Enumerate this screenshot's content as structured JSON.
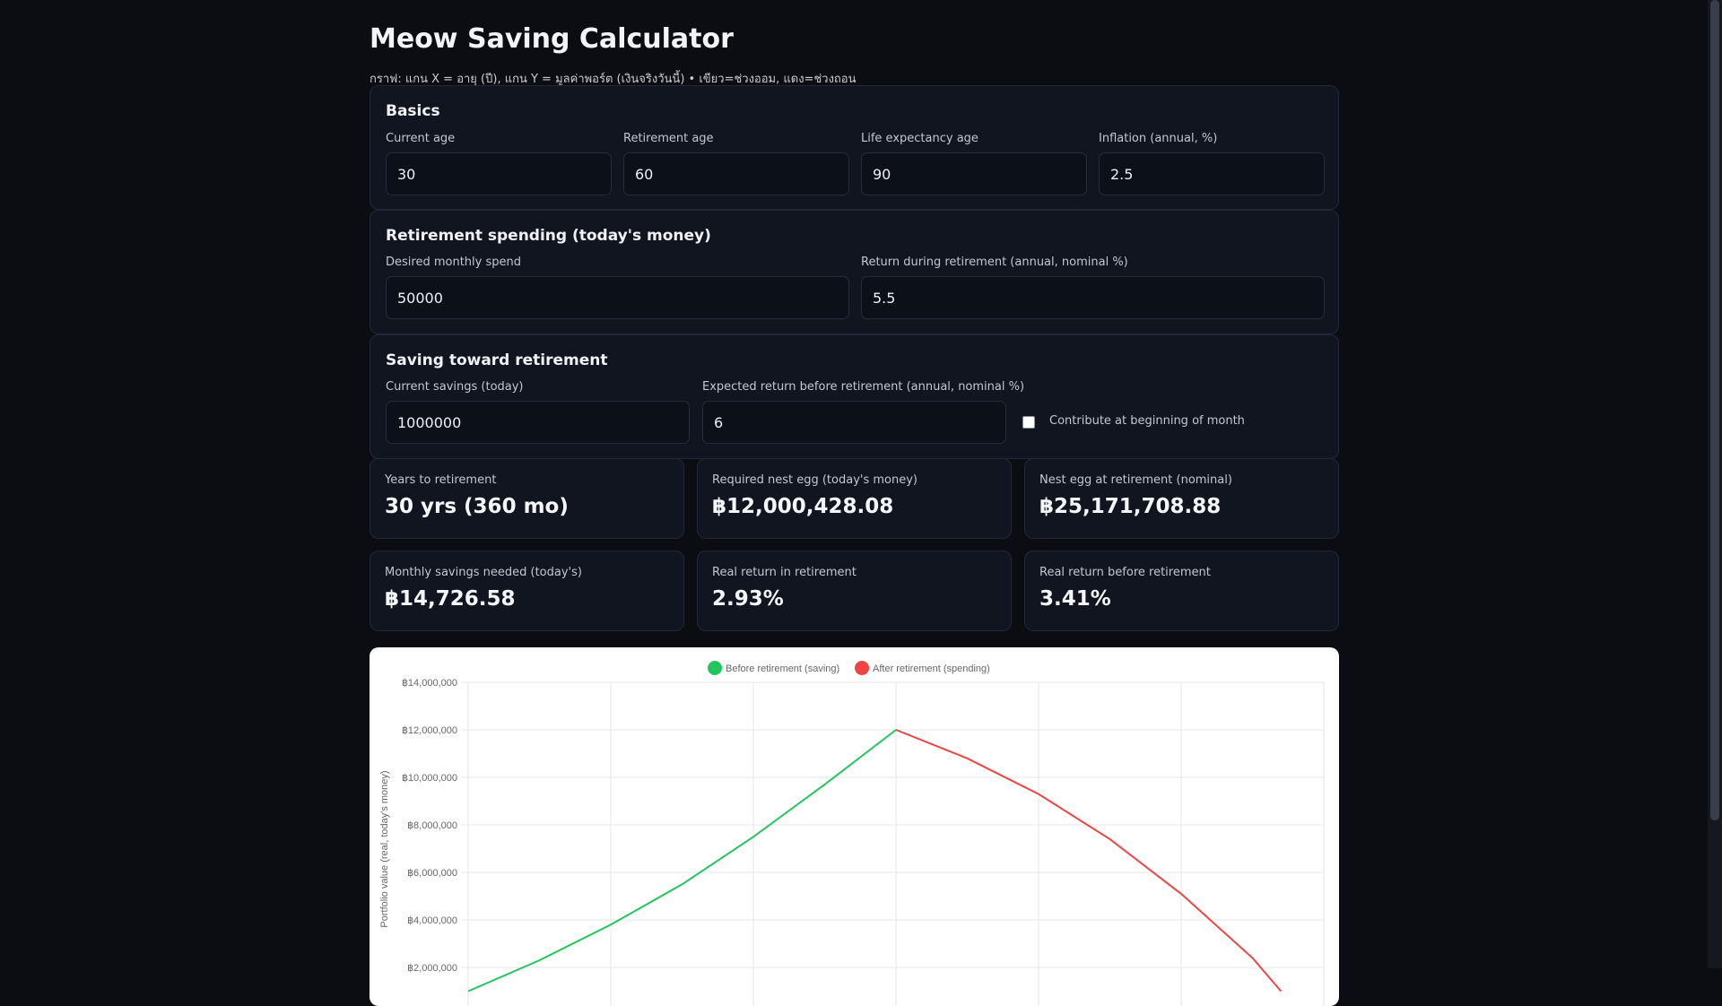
{
  "header": {
    "title": "Meow Saving Calculator",
    "subtitle": "กราฟ: แกน X = อายุ (ปี), แกน Y = มูลค่าพอร์ต (เงินจริงวันนี้) • เขียว=ช่วงออม, แดง=ช่วงถอน"
  },
  "basics": {
    "title": "Basics",
    "current_age": {
      "label": "Current age",
      "value": "30"
    },
    "retirement_age": {
      "label": "Retirement age",
      "value": "60"
    },
    "life_expectancy": {
      "label": "Life expectancy age",
      "value": "90"
    },
    "inflation": {
      "label": "Inflation (annual, %)",
      "value": "2.5"
    }
  },
  "spending": {
    "title": "Retirement spending (today's money)",
    "monthly_spend": {
      "label": "Desired monthly spend",
      "value": "50000"
    },
    "return_retirement": {
      "label": "Return during retirement (annual, nominal %)",
      "value": "5.5"
    }
  },
  "saving": {
    "title": "Saving toward retirement",
    "current_savings": {
      "label": "Current savings (today)",
      "value": "1000000"
    },
    "return_before": {
      "label": "Expected return before retirement (annual, nominal %)",
      "value": "6"
    },
    "contribute_beginning": {
      "label": "Contribute at beginning of month",
      "checked": false
    }
  },
  "stats": [
    {
      "label": "Years to retirement",
      "value": "30 yrs (360 mo)"
    },
    {
      "label": "Required nest egg (today's money)",
      "value": "฿12,000,428.08"
    },
    {
      "label": "Nest egg at retirement (nominal)",
      "value": "฿25,171,708.88"
    },
    {
      "label": "Monthly savings needed (today's)",
      "value": "฿14,726.58"
    },
    {
      "label": "Real return in retirement",
      "value": "2.93%"
    },
    {
      "label": "Real return before retirement",
      "value": "3.41%"
    }
  ],
  "chart_data": {
    "type": "line",
    "title": "",
    "xlabel": "",
    "ylabel": "Portfolio value (real, today's money)",
    "ylim": [
      0,
      14000000
    ],
    "xlim": [
      30,
      90
    ],
    "y_ticks": [
      "฿14,000,000",
      "฿12,000,000",
      "฿10,000,000",
      "฿8,000,000",
      "฿6,000,000",
      "฿4,000,000",
      "฿2,000,000"
    ],
    "y_tick_values": [
      14000000,
      12000000,
      10000000,
      8000000,
      6000000,
      4000000,
      2000000
    ],
    "legend_position": "top-center",
    "grid": true,
    "series": [
      {
        "name": "Before retirement (saving)",
        "color": "#22c55e",
        "points": [
          [
            30,
            1000000
          ],
          [
            35,
            2300000
          ],
          [
            40,
            3800000
          ],
          [
            45,
            5500000
          ],
          [
            50,
            7500000
          ],
          [
            55,
            9700000
          ],
          [
            60,
            12000000
          ]
        ]
      },
      {
        "name": "After retirement (spending)",
        "color": "#ef4444",
        "points": [
          [
            60,
            12000000
          ],
          [
            65,
            10800000
          ],
          [
            70,
            9300000
          ],
          [
            75,
            7400000
          ],
          [
            80,
            5100000
          ],
          [
            85,
            2400000
          ],
          [
            87,
            1000000
          ]
        ]
      }
    ]
  },
  "colors": {
    "saving": "#22c55e",
    "spending": "#ef4444",
    "background": "#0b0d12"
  }
}
